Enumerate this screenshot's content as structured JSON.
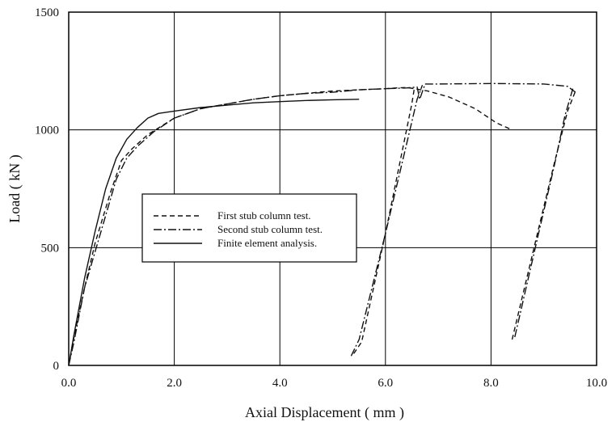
{
  "chart_data": {
    "type": "line",
    "xlabel": "Axial Displacement  ( mm )",
    "ylabel": "Load  ( kN )",
    "xlim": [
      0,
      10
    ],
    "ylim": [
      0,
      1500
    ],
    "xticks": [
      0,
      2,
      4,
      6,
      8,
      10
    ],
    "yticks": [
      0,
      500,
      1000,
      1500
    ],
    "xtick_labels": [
      "0.0",
      "2.0",
      "4.0",
      "6.0",
      "8.0",
      "10.0"
    ],
    "ytick_labels": [
      "0",
      "500",
      "1000",
      "1500"
    ],
    "grid": true,
    "legend_position": "center-left",
    "series": [
      {
        "name": "First stub column test.",
        "style": "dashed",
        "x": [
          0.0,
          0.1,
          0.3,
          0.5,
          0.8,
          1.0,
          1.2,
          1.5,
          2.0,
          2.5,
          3.0,
          3.5,
          4.0,
          4.5,
          5.0,
          5.5,
          6.0,
          6.2,
          6.4,
          6.55,
          6.8,
          7.2,
          7.7,
          8.1,
          8.4
        ],
        "y": [
          0,
          120,
          330,
          520,
          740,
          870,
          920,
          980,
          1050,
          1090,
          1110,
          1130,
          1145,
          1155,
          1165,
          1170,
          1175,
          1178,
          1180,
          1175,
          1165,
          1140,
          1090,
          1030,
          1000
        ]
      },
      {
        "name": "Second stub column test.",
        "style": "dash-dot",
        "x": [
          0.0,
          0.1,
          0.3,
          0.6,
          0.9,
          1.1,
          1.3,
          1.6,
          2.0,
          2.5,
          3.0,
          3.5,
          4.0,
          4.5,
          5.0,
          5.5,
          6.0,
          6.4,
          6.6,
          6.65,
          6.75,
          7.0,
          8.0,
          9.0,
          9.45,
          9.6
        ],
        "y": [
          0,
          100,
          330,
          560,
          790,
          880,
          930,
          990,
          1050,
          1090,
          1110,
          1130,
          1145,
          1155,
          1160,
          1170,
          1175,
          1178,
          1182,
          1130,
          1195,
          1195,
          1197,
          1195,
          1185,
          1160
        ]
      },
      {
        "name": "Finite element analysis.",
        "style": "solid",
        "x": [
          0.0,
          0.1,
          0.3,
          0.5,
          0.7,
          0.9,
          1.1,
          1.3,
          1.5,
          1.7,
          2.0,
          2.5,
          3.0,
          3.5,
          4.0,
          4.5,
          5.0,
          5.5
        ],
        "y": [
          0,
          130,
          370,
          570,
          750,
          880,
          960,
          1010,
          1050,
          1070,
          1080,
          1095,
          1105,
          1115,
          1120,
          1125,
          1128,
          1130
        ]
      },
      {
        "name": "",
        "style": "dashed",
        "x": [
          5.4,
          5.55,
          6.0,
          6.5,
          6.55
        ],
        "y": [
          50,
          100,
          560,
          1110,
          1180
        ]
      },
      {
        "name": "",
        "style": "dash-dot",
        "x": [
          5.35,
          5.5,
          6.0,
          6.6,
          6.7
        ],
        "y": [
          40,
          110,
          560,
          1130,
          1190
        ]
      },
      {
        "name": "",
        "style": "dashed",
        "x": [
          8.4,
          8.9,
          9.2,
          9.45,
          9.6
        ],
        "y": [
          110,
          580,
          860,
          1080,
          1165
        ]
      },
      {
        "name": "",
        "style": "dash-dot",
        "x": [
          8.45,
          8.9,
          9.2,
          9.4,
          9.55
        ],
        "y": [
          120,
          560,
          850,
          1060,
          1175
        ]
      }
    ]
  }
}
